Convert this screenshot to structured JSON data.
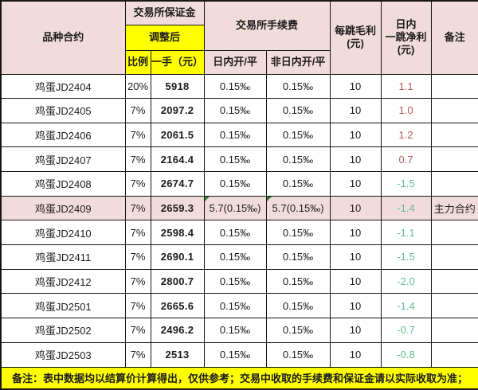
{
  "colors": {
    "header_pink": "#F2DCDB",
    "highlight_pink": "#F2DCDB",
    "yellow": "#FFFF00",
    "border": "#161616",
    "positive_value_red": "#B65A5A",
    "negative_value_green": "#63BE93",
    "comment_triangle_green": "#2E7D32"
  },
  "header": {
    "contract": "品种合约",
    "exchange_margin": "交易所保证金",
    "adjusted": "调整后",
    "ratio": "比例",
    "per_lot": "一手（元）",
    "exchange_fee": "交易所手续费",
    "fee_intraday": "日内开/平",
    "fee_non_intraday": "非日内开/平",
    "gross_profit_per_tick": "每跳毛利\n(元)",
    "intraday_net_profit_per_tick": "日内\n一跳净利\n(元)",
    "remark": "备注"
  },
  "rows": [
    {
      "contract": "鸡蛋JD2404",
      "ratio": "20%",
      "per_lot": "5918",
      "fee_intraday": "0.15‰",
      "fee_non_intraday": "0.15‰",
      "gross": "10",
      "net": "1.1",
      "net_color": "pos",
      "remark": "",
      "highlight": false,
      "comment_marker": false
    },
    {
      "contract": "鸡蛋JD2405",
      "ratio": "7%",
      "per_lot": "2097.2",
      "fee_intraday": "0.15‰",
      "fee_non_intraday": "0.15‰",
      "gross": "10",
      "net": "1.0",
      "net_color": "pos",
      "remark": "",
      "highlight": false,
      "comment_marker": false
    },
    {
      "contract": "鸡蛋JD2406",
      "ratio": "7%",
      "per_lot": "2061.5",
      "fee_intraday": "0.15‰",
      "fee_non_intraday": "0.15‰",
      "gross": "10",
      "net": "1.2",
      "net_color": "pos",
      "remark": "",
      "highlight": false,
      "comment_marker": false
    },
    {
      "contract": "鸡蛋JD2407",
      "ratio": "7%",
      "per_lot": "2164.4",
      "fee_intraday": "0.15‰",
      "fee_non_intraday": "0.15‰",
      "gross": "10",
      "net": "0.7",
      "net_color": "pos",
      "remark": "",
      "highlight": false,
      "comment_marker": false
    },
    {
      "contract": "鸡蛋JD2408",
      "ratio": "7%",
      "per_lot": "2674.7",
      "fee_intraday": "0.15‰",
      "fee_non_intraday": "0.15‰",
      "gross": "10",
      "net": "-1.5",
      "net_color": "neg",
      "remark": "",
      "highlight": false,
      "comment_marker": false
    },
    {
      "contract": "鸡蛋JD2409",
      "ratio": "7%",
      "per_lot": "2659.3",
      "fee_intraday": "5.7(0.15‰)",
      "fee_non_intraday": "5.7(0.15‰)",
      "gross": "10",
      "net": "-1.4",
      "net_color": "neg",
      "remark": "主力合约",
      "highlight": true,
      "comment_marker": true
    },
    {
      "contract": "鸡蛋JD2410",
      "ratio": "7%",
      "per_lot": "2598.4",
      "fee_intraday": "0.15‰",
      "fee_non_intraday": "0.15‰",
      "gross": "10",
      "net": "-1.1",
      "net_color": "neg",
      "remark": "",
      "highlight": false,
      "comment_marker": false
    },
    {
      "contract": "鸡蛋JD2411",
      "ratio": "7%",
      "per_lot": "2690.1",
      "fee_intraday": "0.15‰",
      "fee_non_intraday": "0.15‰",
      "gross": "10",
      "net": "-1.5",
      "net_color": "neg",
      "remark": "",
      "highlight": false,
      "comment_marker": false
    },
    {
      "contract": "鸡蛋JD2412",
      "ratio": "7%",
      "per_lot": "2800.7",
      "fee_intraday": "0.15‰",
      "fee_non_intraday": "0.15‰",
      "gross": "10",
      "net": "-2.0",
      "net_color": "neg",
      "remark": "",
      "highlight": false,
      "comment_marker": false
    },
    {
      "contract": "鸡蛋JD2501",
      "ratio": "7%",
      "per_lot": "2665.6",
      "fee_intraday": "0.15‰",
      "fee_non_intraday": "0.15‰",
      "gross": "10",
      "net": "-1.4",
      "net_color": "neg",
      "remark": "",
      "highlight": false,
      "comment_marker": false
    },
    {
      "contract": "鸡蛋JD2502",
      "ratio": "7%",
      "per_lot": "2496.2",
      "fee_intraday": "0.15‰",
      "fee_non_intraday": "0.15‰",
      "gross": "10",
      "net": "-0.7",
      "net_color": "neg",
      "remark": "",
      "highlight": false,
      "comment_marker": false
    },
    {
      "contract": "鸡蛋JD2503",
      "ratio": "7%",
      "per_lot": "2513",
      "fee_intraday": "0.15‰",
      "fee_non_intraday": "0.15‰",
      "gross": "10",
      "net": "-0.8",
      "net_color": "neg",
      "remark": "",
      "highlight": false,
      "comment_marker": false
    }
  ],
  "footer": {
    "note": "备注：表中数据均以结算价计算得出，仅供参考；交易中收取的手续费和保证金请以实际收取为准；"
  }
}
